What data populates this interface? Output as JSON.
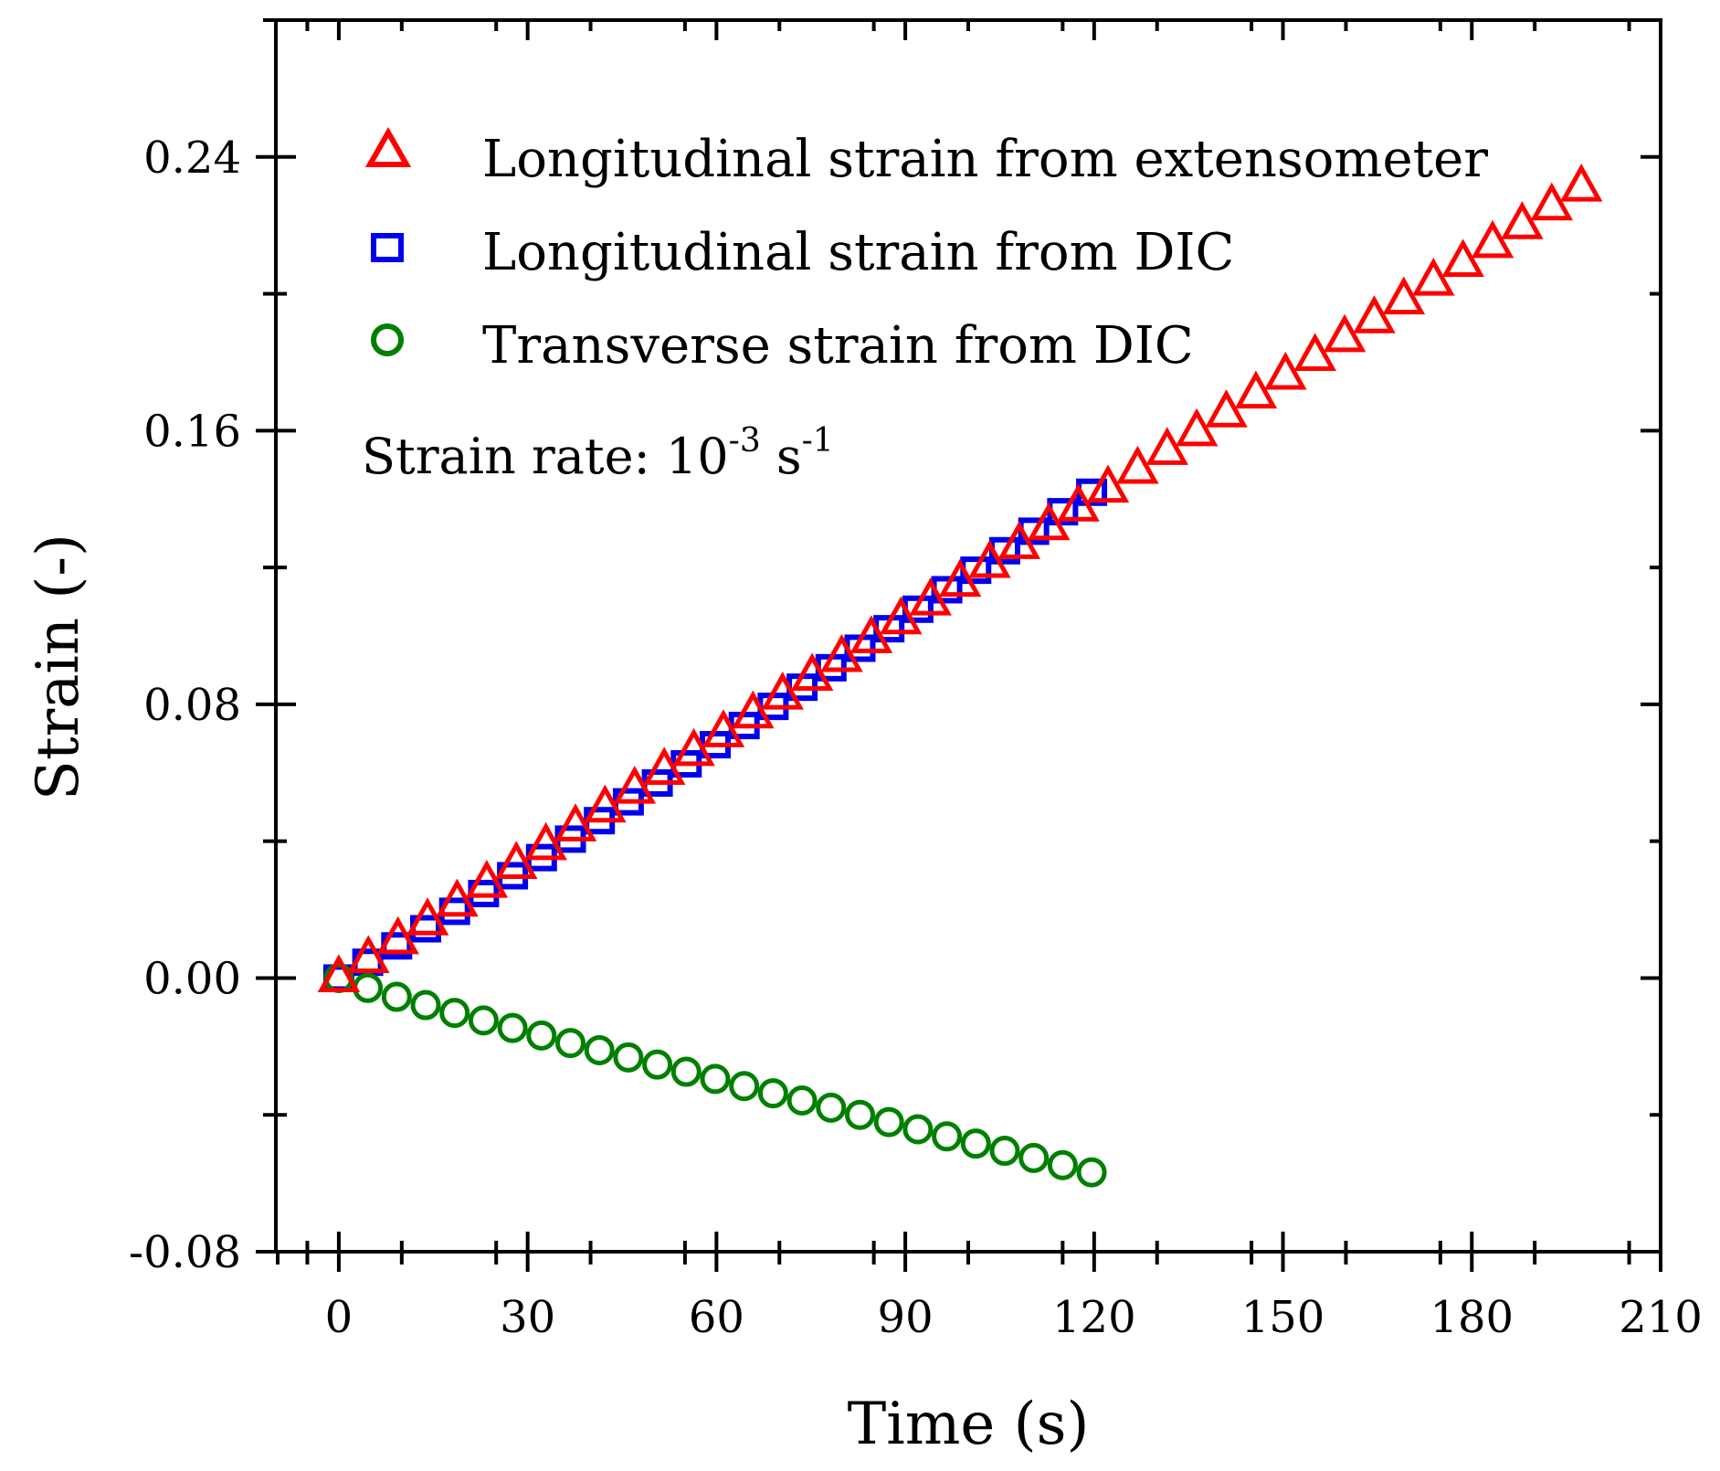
{
  "chart_data": {
    "type": "scatter",
    "title": "",
    "xlabel": "Time (s)",
    "ylabel": "Strain (-)",
    "xlim": [
      -10,
      210
    ],
    "ylim": [
      -0.08,
      0.28
    ],
    "xticks": [
      0,
      30,
      60,
      90,
      120,
      150,
      180,
      210
    ],
    "xtick_labels": [
      "0",
      "30",
      "60",
      "90",
      "120",
      "150",
      "180",
      "210"
    ],
    "yticks": [
      -0.08,
      0.0,
      0.08,
      0.16,
      0.24
    ],
    "ytick_labels": [
      "-0.08",
      "0.00",
      "0.08",
      "0.16",
      "0.24"
    ],
    "grid": false,
    "legend_position": "top-left",
    "annotation": {
      "text": "Strain rate: 10",
      "exp1": "-3",
      "mid": " s",
      "exp2": "-1"
    },
    "series": [
      {
        "name": "Longitudinal strain from extensometer",
        "marker": "triangle",
        "color": "#ff0000",
        "x": [
          0,
          4.7,
          9.4,
          14.1,
          18.8,
          23.5,
          28.2,
          32.9,
          37.6,
          42.3,
          47.0,
          51.7,
          56.4,
          61.1,
          65.8,
          70.5,
          75.2,
          79.9,
          84.6,
          89.3,
          94.0,
          98.7,
          103.4,
          108.1,
          112.8,
          117.5,
          122.2,
          126.9,
          131.6,
          136.3,
          141.0,
          145.7,
          150.4,
          155.1,
          159.8,
          164.5,
          169.2,
          173.9,
          178.6,
          183.3,
          188.0,
          192.7,
          197.4
        ],
        "y": [
          0.0,
          0.0056,
          0.0111,
          0.0166,
          0.0221,
          0.0276,
          0.0331,
          0.0386,
          0.0441,
          0.0496,
          0.0551,
          0.0606,
          0.0661,
          0.0716,
          0.0771,
          0.0826,
          0.0881,
          0.0936,
          0.0991,
          0.1046,
          0.1101,
          0.1156,
          0.1211,
          0.1266,
          0.1321,
          0.1376,
          0.1431,
          0.1486,
          0.1541,
          0.1596,
          0.1651,
          0.1706,
          0.1761,
          0.1816,
          0.1871,
          0.1926,
          0.1981,
          0.2036,
          0.2091,
          0.2146,
          0.2201,
          0.2256,
          0.2311
        ]
      },
      {
        "name": "Longitudinal strain from DIC",
        "marker": "square",
        "color": "#0000ee",
        "x": [
          0,
          4.6,
          9.2,
          13.8,
          18.4,
          23.0,
          27.6,
          32.2,
          36.8,
          41.4,
          46.0,
          50.6,
          55.2,
          59.8,
          64.4,
          69.0,
          73.6,
          78.2,
          82.8,
          87.4,
          92.0,
          96.6,
          101.2,
          105.8,
          110.4,
          115.0,
          119.6
        ],
        "y": [
          0.0,
          0.0046,
          0.0094,
          0.0144,
          0.0195,
          0.0247,
          0.0299,
          0.0352,
          0.0406,
          0.046,
          0.0515,
          0.057,
          0.0626,
          0.0682,
          0.0738,
          0.0794,
          0.085,
          0.0907,
          0.0964,
          0.1021,
          0.1078,
          0.1135,
          0.1192,
          0.1249,
          0.1306,
          0.1363,
          0.142
        ]
      },
      {
        "name": "Transverse strain from DIC",
        "marker": "circle",
        "color": "#008000",
        "x": [
          0,
          4.6,
          9.2,
          13.8,
          18.4,
          23.0,
          27.6,
          32.2,
          36.8,
          41.4,
          46.0,
          50.6,
          55.2,
          59.8,
          64.4,
          69.0,
          73.6,
          78.2,
          82.8,
          87.4,
          92.0,
          96.6,
          101.2,
          105.8,
          110.4,
          115.0,
          119.6
        ],
        "y": [
          0.0,
          -0.0029,
          -0.0055,
          -0.0079,
          -0.0102,
          -0.0124,
          -0.0146,
          -0.0168,
          -0.019,
          -0.0211,
          -0.0232,
          -0.0253,
          -0.0274,
          -0.0295,
          -0.0316,
          -0.0337,
          -0.0358,
          -0.0379,
          -0.04,
          -0.0421,
          -0.0442,
          -0.0463,
          -0.0484,
          -0.0505,
          -0.0526,
          -0.0547,
          -0.0568
        ]
      }
    ]
  }
}
